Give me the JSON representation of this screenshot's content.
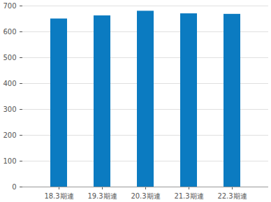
{
  "chart_data": {
    "type": "bar",
    "categories": [
      "18.3期連",
      "19.3期連",
      "20.3期連",
      "21.3期連",
      "22.3期連"
    ],
    "values": [
      650,
      662,
      680,
      670,
      668
    ],
    "color": "#0b7bc1",
    "ylim": [
      0,
      700
    ],
    "yticks": [
      0,
      100,
      200,
      300,
      400,
      500,
      600,
      700
    ],
    "grid": true
  }
}
